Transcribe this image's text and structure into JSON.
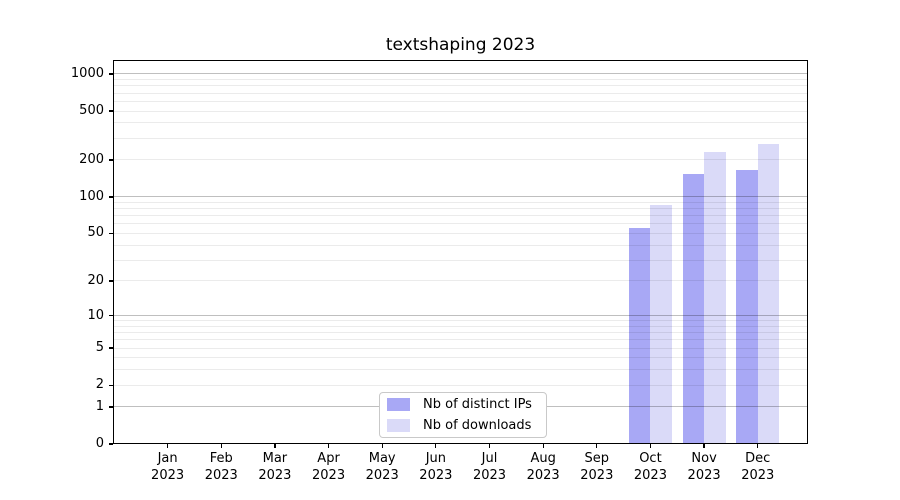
{
  "chart_data": {
    "type": "bar",
    "title": "textshaping 2023",
    "x": {
      "months": [
        "Jan",
        "Feb",
        "Mar",
        "Apr",
        "May",
        "Jun",
        "Jul",
        "Aug",
        "Sep",
        "Oct",
        "Nov",
        "Dec"
      ],
      "year": "2023"
    },
    "series": [
      {
        "name": "Nb of distinct IPs",
        "color": "#a8a8f5",
        "values": [
          0,
          0,
          0,
          0,
          0,
          0,
          0,
          0,
          0,
          55,
          155,
          165
        ]
      },
      {
        "name": "Nb of downloads",
        "color": "#dadaf8",
        "values": [
          0,
          0,
          0,
          0,
          0,
          0,
          0,
          0,
          0,
          86,
          230,
          268
        ]
      }
    ],
    "y_axis": {
      "scale": "log10(1+value)",
      "ticks": [
        0,
        1,
        2,
        5,
        10,
        20,
        50,
        100,
        200,
        500,
        1000
      ],
      "ylim": [
        0,
        1300
      ]
    },
    "grid": {
      "orientation": "horizontal",
      "major_at": [
        1,
        10,
        100,
        1000
      ],
      "minor_at": [
        2,
        3,
        4,
        5,
        6,
        7,
        8,
        9,
        20,
        30,
        40,
        50,
        60,
        70,
        80,
        90,
        200,
        300,
        400,
        500,
        600,
        700,
        800,
        900
      ]
    },
    "legend": {
      "position": "lower-center-inside",
      "entries": [
        "Nb of distinct IPs",
        "Nb of downloads"
      ]
    }
  },
  "colors": {
    "background": "#ffffff",
    "axis": "#000000",
    "grid_major": "rgba(0,0,0,0.25)",
    "grid_minor": "rgba(0,0,0,0.08)",
    "bar_distinct_ips": "#a8a8f5",
    "bar_downloads": "#dadaf8"
  }
}
